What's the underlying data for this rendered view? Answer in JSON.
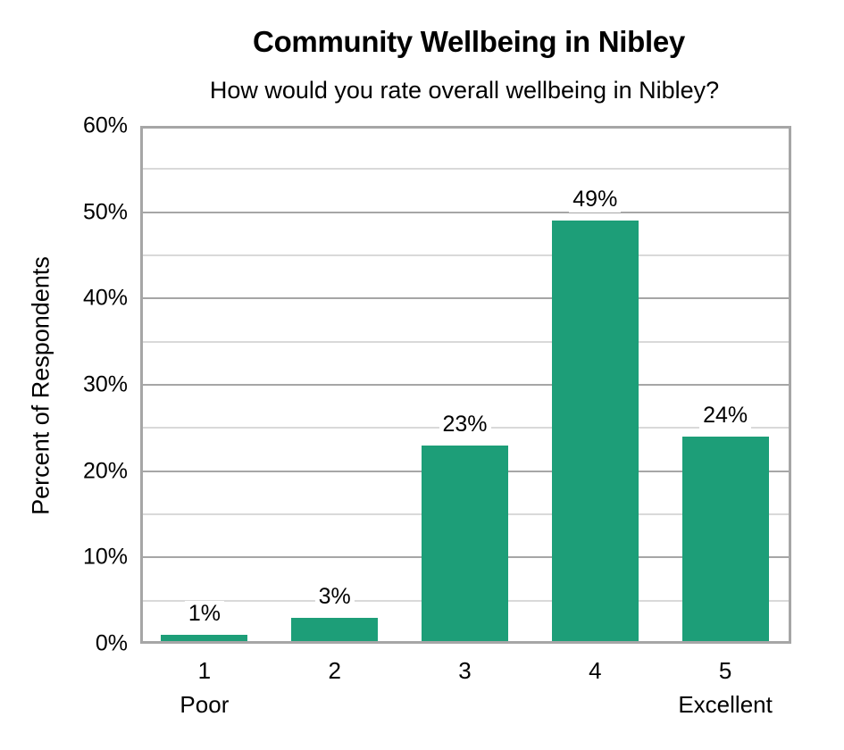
{
  "chart_data": {
    "type": "bar",
    "title": "Community Wellbeing in Nibley",
    "subtitle": "How would you rate overall wellbeing in Nibley?",
    "xlabel": "",
    "ylabel": "Percent of Respondents",
    "categories": [
      "1",
      "2",
      "3",
      "4",
      "5"
    ],
    "category_sublabels": [
      "Poor",
      "",
      "",
      "",
      "Excellent"
    ],
    "values": [
      1,
      3,
      23,
      49,
      24
    ],
    "data_labels": [
      "1%",
      "3%",
      "23%",
      "49%",
      "24%"
    ],
    "ylim": [
      0,
      60
    ],
    "yticks": [
      "0%",
      "10%",
      "20%",
      "30%",
      "40%",
      "50%",
      "60%"
    ],
    "grid": true,
    "legend": null,
    "bar_color": "#1d9e78"
  }
}
